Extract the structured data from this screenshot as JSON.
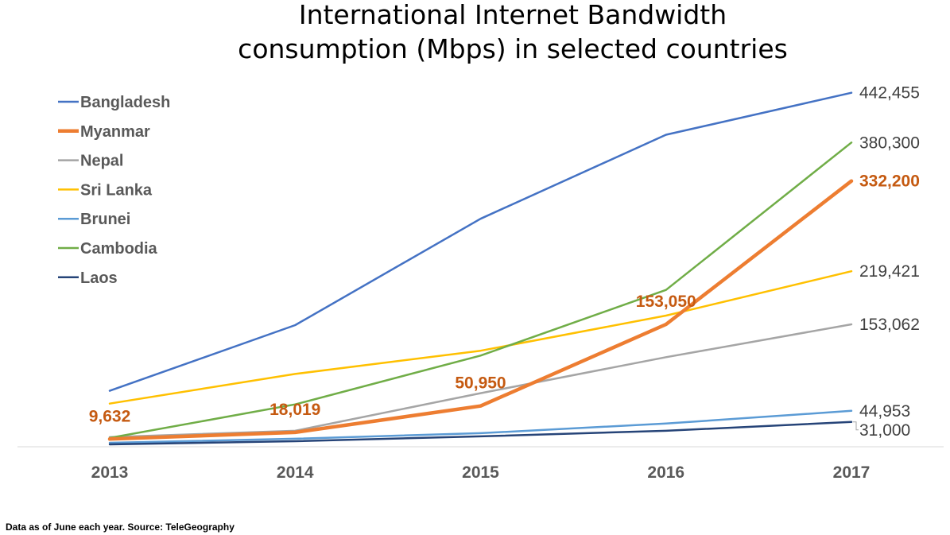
{
  "chart_data": {
    "type": "line",
    "title_lines": [
      "International Internet Bandwidth",
      "consumption (Mbps) in selected countries"
    ],
    "categories": [
      "2013",
      "2014",
      "2015",
      "2016",
      "2017"
    ],
    "ylim": [
      0,
      470000
    ],
    "grid": false,
    "legend_position": "top-left",
    "series": [
      {
        "name": "Bangladesh",
        "color": "#4472C4",
        "values": [
          70000,
          152000,
          285000,
          390000,
          442455
        ],
        "end_label": "442,455"
      },
      {
        "name": "Myanmar",
        "color": "#ED7D31",
        "values": [
          9632,
          18019,
          50950,
          153050,
          332200
        ],
        "end_label": "332,200",
        "highlight": true
      },
      {
        "name": "Nepal",
        "color": "#A5A5A5",
        "values": [
          12000,
          20000,
          67000,
          112000,
          153062
        ],
        "end_label": "153,062"
      },
      {
        "name": "Sri Lanka",
        "color": "#FFC000",
        "values": [
          54000,
          91000,
          120000,
          164000,
          219421
        ],
        "end_label": "219,421"
      },
      {
        "name": "Brunei",
        "color": "#5B9BD5",
        "values": [
          5000,
          10000,
          17000,
          29000,
          44953
        ],
        "end_label": "44,953"
      },
      {
        "name": "Cambodia",
        "color": "#70AD47",
        "values": [
          11000,
          53000,
          114000,
          196000,
          380300
        ],
        "end_label": "380,300"
      },
      {
        "name": "Laos",
        "color": "#264478",
        "values": [
          3000,
          7000,
          13000,
          20000,
          31000
        ],
        "end_label": "31,000"
      }
    ],
    "data_labels": [
      {
        "series": "Myanmar",
        "category": "2013",
        "text": "9,632"
      },
      {
        "series": "Myanmar",
        "category": "2014",
        "text": "18,019"
      },
      {
        "series": "Myanmar",
        "category": "2015",
        "text": "50,950"
      },
      {
        "series": "Myanmar",
        "category": "2016",
        "text": "153,050"
      }
    ]
  },
  "footnote": "Data as of June each year. Source: TeleGeography"
}
